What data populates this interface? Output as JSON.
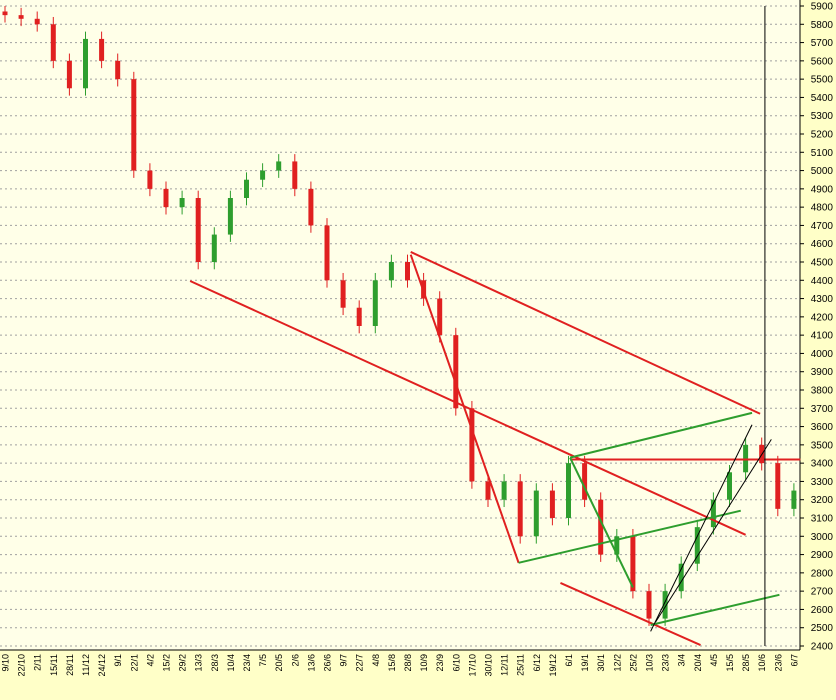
{
  "chart_data": {
    "type": "candlestick",
    "categories": [
      "9/10",
      "22/10",
      "2/11",
      "15/11",
      "28/11",
      "11/12",
      "24/12",
      "9/1",
      "22/1",
      "4/2",
      "15/2",
      "29/2",
      "13/3",
      "28/3",
      "10/4",
      "23/4",
      "7/5",
      "20/5",
      "2/6",
      "13/6",
      "26/6",
      "9/7",
      "22/7",
      "4/8",
      "15/8",
      "28/8",
      "10/9",
      "23/9",
      "6/10",
      "17/10",
      "30/10",
      "12/11",
      "25/11",
      "6/12",
      "19/12",
      "6/1",
      "19/1",
      "30/1",
      "12/2",
      "25/2",
      "10/3",
      "23/3",
      "3/4",
      "20/4",
      "4/5",
      "15/5",
      "28/5",
      "10/6",
      "23/6",
      "6/7"
    ],
    "open": [
      5870,
      5850,
      5830,
      5800,
      5600,
      5450,
      5720,
      5600,
      5500,
      5000,
      4900,
      4800,
      4850,
      4500,
      4650,
      4850,
      4950,
      5000,
      5050,
      4900,
      4700,
      4400,
      4250,
      4150,
      4400,
      4500,
      4400,
      4300,
      4100,
      3700,
      3300,
      3200,
      3300,
      3000,
      3250,
      3100,
      3400,
      3200,
      2900,
      3000,
      2700,
      2550,
      2700,
      2850,
      3050,
      3200,
      3350,
      3500,
      3400,
      3150
    ],
    "high": [
      5900,
      5890,
      5870,
      5840,
      5640,
      5760,
      5760,
      5640,
      5540,
      5040,
      4940,
      4890,
      4890,
      4690,
      4890,
      4990,
      5040,
      5090,
      5090,
      4940,
      4740,
      4440,
      4290,
      4440,
      4540,
      4540,
      4440,
      4340,
      4140,
      3740,
      3340,
      3340,
      3340,
      3290,
      3290,
      3440,
      3440,
      3240,
      3040,
      3040,
      2740,
      2740,
      2890,
      3090,
      3240,
      3390,
      3540,
      3540,
      3440,
      3290
    ],
    "low": [
      5810,
      5790,
      5760,
      5560,
      5410,
      5410,
      5560,
      5460,
      4960,
      4860,
      4760,
      4760,
      4460,
      4460,
      4610,
      4810,
      4910,
      4960,
      4860,
      4660,
      4360,
      4210,
      4110,
      4110,
      4360,
      4360,
      4260,
      4060,
      3660,
      3260,
      3160,
      3160,
      2960,
      2960,
      3060,
      3060,
      3160,
      2860,
      2860,
      2660,
      2510,
      2510,
      2660,
      2810,
      3010,
      3160,
      3310,
      3360,
      3110,
      3110
    ],
    "close": [
      5850,
      5830,
      5800,
      5600,
      5450,
      5720,
      5600,
      5500,
      5000,
      4900,
      4800,
      4850,
      4500,
      4650,
      4850,
      4950,
      5000,
      5050,
      4900,
      4700,
      4400,
      4250,
      4150,
      4400,
      4500,
      4400,
      4300,
      4100,
      3700,
      3300,
      3200,
      3300,
      3000,
      3250,
      3100,
      3400,
      3200,
      2900,
      3000,
      2700,
      2550,
      2700,
      2850,
      3050,
      3200,
      3350,
      3500,
      3400,
      3150,
      3250
    ],
    "up_color": "#2e9e2e",
    "down_color": "#e02020",
    "ylim": [
      2400,
      5900
    ],
    "yticks": [
      2400,
      2500,
      2600,
      2700,
      2800,
      2900,
      3000,
      3100,
      3200,
      3300,
      3400,
      3500,
      3600,
      3700,
      3800,
      3900,
      4000,
      4100,
      4200,
      4300,
      4400,
      4500,
      4600,
      4700,
      4800,
      4900,
      5000,
      5100,
      5200,
      5300,
      5400,
      5500,
      5600,
      5700,
      5800,
      5900
    ],
    "grid": true,
    "trendlines": [
      {
        "color": "#e02020",
        "points": [
          [
            11.5,
            4396
          ],
          [
            46.0,
            3008
          ]
        ]
      },
      {
        "color": "#e02020",
        "points": [
          [
            25.2,
            4555
          ],
          [
            46.9,
            3670
          ]
        ]
      },
      {
        "color": "#e02020",
        "points": [
          [
            25.2,
            4540
          ],
          [
            31.9,
            2855
          ]
        ]
      },
      {
        "color": "#e02020",
        "points": [
          [
            34.5,
            2745
          ],
          [
            43.2,
            2405
          ]
        ]
      },
      {
        "color": "#e02020",
        "points": [
          [
            35.1,
            3420
          ],
          [
            49.4,
            3420
          ]
        ]
      },
      {
        "color": "#2e9e2e",
        "points": [
          [
            31.9,
            2855
          ],
          [
            45.7,
            3140
          ]
        ]
      },
      {
        "color": "#2e9e2e",
        "points": [
          [
            35.1,
            3430
          ],
          [
            46.4,
            3675
          ]
        ]
      },
      {
        "color": "#2e9e2e",
        "points": [
          [
            35.1,
            3430
          ],
          [
            39.0,
            2720
          ]
        ]
      },
      {
        "color": "#2e9e2e",
        "points": [
          [
            40.1,
            2515
          ],
          [
            48.1,
            2680
          ]
        ]
      },
      {
        "color": "#000000",
        "points": [
          [
            40.1,
            2480
          ],
          [
            46.4,
            3610
          ]
        ]
      },
      {
        "color": "#000000",
        "points": [
          [
            40.4,
            2530
          ],
          [
            47.6,
            3530
          ]
        ]
      },
      {
        "color": "#000000",
        "points": [
          [
            47.2,
            5900
          ],
          [
            47.2,
            2400
          ]
        ]
      }
    ]
  }
}
